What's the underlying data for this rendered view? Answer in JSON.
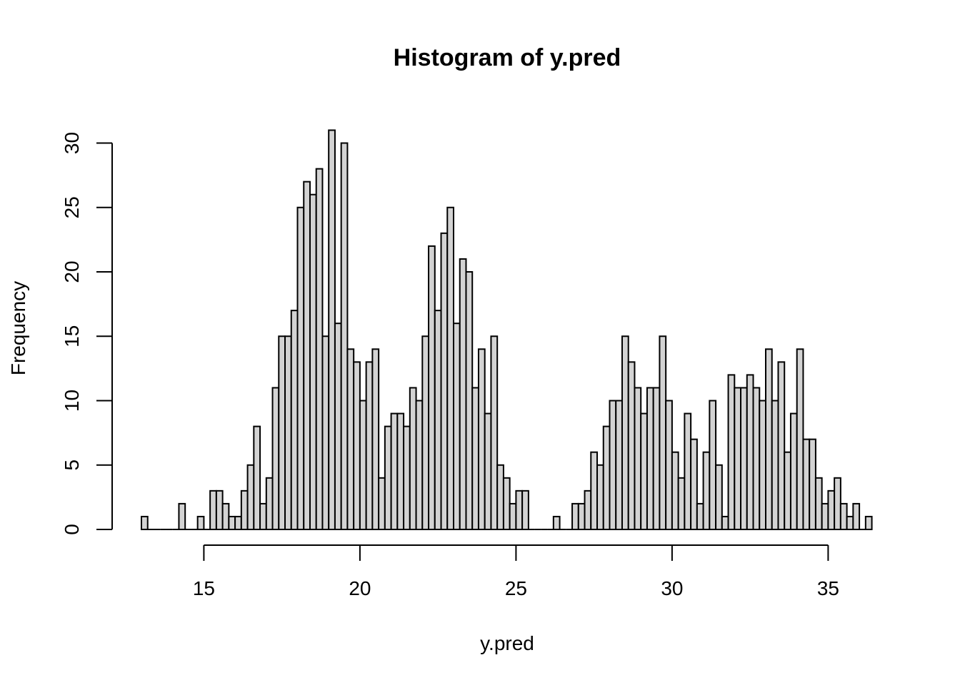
{
  "chart_data": {
    "type": "bar",
    "title": "Histogram of y.pred",
    "xlabel": "y.pred",
    "ylabel": "Frequency",
    "bin_start": 13.0,
    "bin_width": 0.2,
    "counts": [
      1,
      0,
      0,
      0,
      0,
      0,
      2,
      0,
      0,
      1,
      0,
      3,
      3,
      2,
      1,
      1,
      3,
      5,
      8,
      2,
      4,
      11,
      15,
      15,
      17,
      25,
      27,
      26,
      28,
      15,
      31,
      16,
      30,
      14,
      13,
      10,
      13,
      14,
      4,
      8,
      9,
      9,
      8,
      11,
      10,
      15,
      22,
      17,
      23,
      25,
      16,
      21,
      20,
      11,
      14,
      9,
      15,
      5,
      4,
      2,
      3,
      3,
      0,
      0,
      0,
      0,
      1,
      0,
      0,
      2,
      2,
      3,
      6,
      5,
      8,
      10,
      10,
      15,
      13,
      11,
      9,
      11,
      11,
      15,
      10,
      6,
      4,
      9,
      7,
      2,
      6,
      10,
      5,
      1,
      12,
      11,
      11,
      12,
      11,
      10,
      14,
      10,
      13,
      6,
      9,
      14,
      7,
      7,
      4,
      2,
      3,
      4,
      2,
      1,
      2,
      0,
      1
    ],
    "xticks": [
      15,
      20,
      25,
      30,
      35
    ],
    "yticks": [
      0,
      5,
      10,
      15,
      20,
      25,
      30
    ],
    "xlim": [
      13.0,
      36.4
    ],
    "ylim": [
      0,
      31
    ],
    "bar_fill": "#d3d3d3",
    "bar_stroke": "#000000",
    "grid": false
  }
}
